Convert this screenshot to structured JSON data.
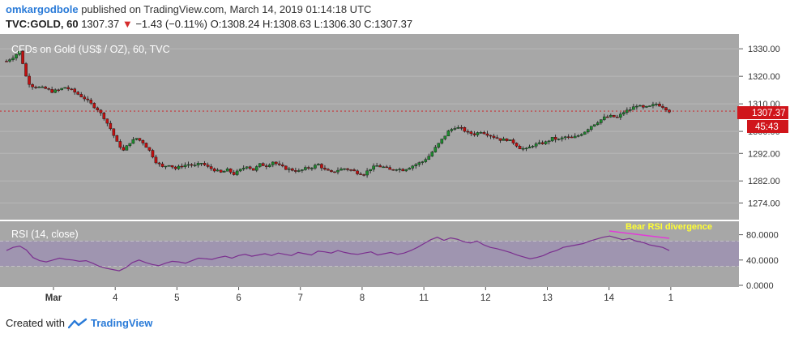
{
  "header": {
    "author": "omkargodbole",
    "published_text": "published on TradingView.com, March 14, 2019 01:14:18 UTC",
    "symbol": "TVC:GOLD, 60",
    "last": "1307.37",
    "change": "−1.43 (−0.11%)",
    "o_label": "O:",
    "o": "1308.24",
    "h_label": "H:",
    "h": "1308.63",
    "l_label": "L:",
    "l": "1306.30",
    "c_label": "C:",
    "c": "1307.37"
  },
  "colors": {
    "background": "#a7a7a7",
    "up": "#1e8a2e",
    "down": "#c01010",
    "rsi_line": "#7b2f8f",
    "rsi_band": "#9c8fb3",
    "price_tag": "#d0151b",
    "annotation": "#ffff33",
    "divergence_line": "#e23ad8"
  },
  "footer": {
    "created_with": "Created with",
    "brand": "TradingView"
  },
  "chart_data": [
    {
      "type": "candlestick",
      "title": "CFDs on Gold (US$ / OZ), 60, TVC",
      "ylim": [
        1270,
        1333
      ],
      "y_ticks": [
        "1330.00",
        "1320.00",
        "1310.00",
        "1300.00",
        "1292.00",
        "1282.00",
        "1274.00"
      ],
      "x_ticks": [
        "Mar",
        "4",
        "5",
        "6",
        "7",
        "8",
        "11",
        "12",
        "13",
        "14",
        "1"
      ],
      "last_price_label": "1307.37",
      "countdown_label": "45:43",
      "price_path": [
        [
          0,
          1325.5
        ],
        [
          1,
          1327
        ],
        [
          2,
          1329
        ],
        [
          2.6,
          1324
        ],
        [
          3.2,
          1318
        ],
        [
          4,
          1316.5
        ],
        [
          5,
          1316
        ],
        [
          6,
          1315.5
        ],
        [
          7,
          1314.5
        ],
        [
          8,
          1315
        ],
        [
          9,
          1316
        ],
        [
          10,
          1315
        ],
        [
          11,
          1313.5
        ],
        [
          12,
          1312
        ],
        [
          13,
          1310
        ],
        [
          14,
          1308
        ],
        [
          15,
          1305
        ],
        [
          16,
          1301
        ],
        [
          17,
          1296
        ],
        [
          18,
          1293
        ],
        [
          19,
          1296
        ],
        [
          20,
          1297.5
        ],
        [
          21,
          1296
        ],
        [
          22,
          1293
        ],
        [
          23,
          1289
        ],
        [
          24,
          1287
        ],
        [
          25,
          1288
        ],
        [
          26,
          1286.5
        ],
        [
          27,
          1287.5
        ],
        [
          28,
          1288
        ],
        [
          29,
          1287.5
        ],
        [
          30,
          1288.5
        ],
        [
          31,
          1287
        ],
        [
          32,
          1286
        ],
        [
          33,
          1285
        ],
        [
          34,
          1286
        ],
        [
          35,
          1284.5
        ],
        [
          36,
          1286
        ],
        [
          37,
          1287.5
        ],
        [
          38,
          1286
        ],
        [
          39,
          1288
        ],
        [
          40,
          1287.5
        ],
        [
          41,
          1289
        ],
        [
          42,
          1287.5
        ],
        [
          43,
          1286.5
        ],
        [
          44,
          1286
        ],
        [
          45,
          1285.5
        ],
        [
          46,
          1286.5
        ],
        [
          47,
          1287
        ],
        [
          48,
          1288
        ],
        [
          49,
          1286
        ],
        [
          50,
          1285
        ],
        [
          51,
          1286
        ],
        [
          52,
          1286.5
        ],
        [
          53,
          1286
        ],
        [
          54,
          1285
        ],
        [
          55,
          1284.5
        ],
        [
          56,
          1286.5
        ],
        [
          57,
          1287.5
        ],
        [
          58,
          1287
        ],
        [
          59,
          1286
        ],
        [
          60,
          1286.5
        ],
        [
          61,
          1286
        ],
        [
          62,
          1287
        ],
        [
          63,
          1288
        ],
        [
          64,
          1289
        ],
        [
          65,
          1291
        ],
        [
          66,
          1294
        ],
        [
          67,
          1297
        ],
        [
          68,
          1300
        ],
        [
          69,
          1301.5
        ],
        [
          70,
          1301
        ],
        [
          71,
          1299.5
        ],
        [
          72,
          1299
        ],
        [
          73,
          1300
        ],
        [
          74,
          1299
        ],
        [
          75,
          1298
        ],
        [
          76,
          1297
        ],
        [
          77,
          1297
        ],
        [
          78,
          1296
        ],
        [
          79,
          1294
        ],
        [
          80,
          1293.5
        ],
        [
          81,
          1295
        ],
        [
          82,
          1295.5
        ],
        [
          83,
          1296
        ],
        [
          84,
          1297.5
        ],
        [
          85,
          1297
        ],
        [
          86,
          1298
        ],
        [
          87,
          1297.5
        ],
        [
          88,
          1298.5
        ],
        [
          89,
          1300
        ],
        [
          90,
          1302
        ],
        [
          91,
          1303.5
        ],
        [
          92,
          1305
        ],
        [
          93,
          1305.5
        ],
        [
          94,
          1305
        ],
        [
          95,
          1307
        ],
        [
          96,
          1308
        ],
        [
          97,
          1309.5
        ],
        [
          98,
          1308.5
        ],
        [
          99,
          1309
        ],
        [
          100,
          1310
        ],
        [
          101,
          1309
        ],
        [
          102,
          1307.37
        ]
      ],
      "x_tick_positions": [
        [
          0,
          "Mar"
        ],
        [
          9.5,
          "4"
        ],
        [
          19,
          "5"
        ],
        [
          28.5,
          "6"
        ],
        [
          38,
          "7"
        ],
        [
          47.5,
          "8"
        ],
        [
          57,
          "11"
        ],
        [
          66.5,
          "12"
        ],
        [
          76,
          "13"
        ],
        [
          85.5,
          "14"
        ],
        [
          95,
          "1"
        ]
      ]
    },
    {
      "type": "line",
      "title": "RSI (14, close)",
      "ylim": [
        0,
        100
      ],
      "y_ticks": [
        "80.0000",
        "40.0000",
        "0.0000"
      ],
      "band": [
        30,
        70
      ],
      "annotation": "Bear RSI divergence",
      "values": [
        55,
        60,
        62,
        56,
        44,
        39,
        37,
        40,
        43,
        41,
        40,
        38,
        39,
        35,
        30,
        27,
        25,
        23,
        28,
        36,
        40,
        36,
        33,
        31,
        35,
        38,
        37,
        35,
        39,
        43,
        42,
        41,
        44,
        46,
        43,
        47,
        49,
        46,
        48,
        50,
        47,
        51,
        49,
        47,
        52,
        50,
        48,
        54,
        53,
        51,
        55,
        52,
        50,
        49,
        51,
        53,
        48,
        50,
        52,
        49,
        51,
        55,
        60,
        66,
        72,
        76,
        71,
        75,
        73,
        69,
        67,
        70,
        64,
        60,
        58,
        55,
        52,
        48,
        45,
        42,
        44,
        47,
        52,
        55,
        60,
        62,
        64,
        66,
        70,
        73,
        76,
        78,
        75,
        72,
        74,
        70,
        68,
        64,
        62,
        60,
        55
      ]
    }
  ]
}
